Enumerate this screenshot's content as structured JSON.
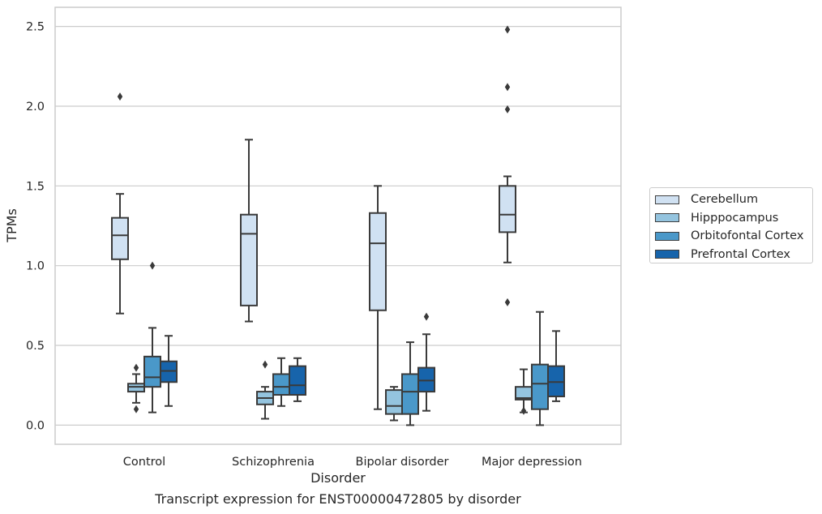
{
  "caption": "Transcript expression for ENST00000472805 by disorder",
  "chart_data": {
    "type": "box",
    "xlabel": "Disorder",
    "ylabel": "TPMs",
    "ylim": [
      -0.12,
      2.62
    ],
    "yticks": [
      0.0,
      0.5,
      1.0,
      1.5,
      2.0,
      2.5
    ],
    "ytick_labels": [
      "0.0",
      "0.5",
      "1.0",
      "1.5",
      "2.0",
      "2.5"
    ],
    "grid": "horizontal",
    "legend_position": "right",
    "categories": [
      "Control",
      "Schizophrenia",
      "Bipolar disorder",
      "Major depression"
    ],
    "series": [
      {
        "name": "Cerebellum",
        "color": "#d0e1f2",
        "boxes": [
          {
            "whisker_low": 0.7,
            "q1": 1.04,
            "median": 1.19,
            "q3": 1.3,
            "whisker_high": 1.45,
            "outliers": [
              2.06
            ]
          },
          {
            "whisker_low": 0.65,
            "q1": 0.75,
            "median": 1.2,
            "q3": 1.32,
            "whisker_high": 1.79,
            "outliers": []
          },
          {
            "whisker_low": 0.1,
            "q1": 0.72,
            "median": 1.14,
            "q3": 1.33,
            "whisker_high": 1.5,
            "outliers": []
          },
          {
            "whisker_low": 1.02,
            "q1": 1.21,
            "median": 1.32,
            "q3": 1.5,
            "whisker_high": 1.56,
            "outliers": [
              0.77,
              1.98,
              2.12,
              2.48
            ]
          }
        ]
      },
      {
        "name": "Hipppocampus",
        "color": "#94c4df",
        "boxes": [
          {
            "whisker_low": 0.14,
            "q1": 0.21,
            "median": 0.24,
            "q3": 0.26,
            "whisker_high": 0.32,
            "outliers": [
              0.1,
              0.36
            ]
          },
          {
            "whisker_low": 0.04,
            "q1": 0.13,
            "median": 0.17,
            "q3": 0.21,
            "whisker_high": 0.24,
            "outliers": [
              0.38
            ]
          },
          {
            "whisker_low": 0.03,
            "q1": 0.07,
            "median": 0.12,
            "q3": 0.22,
            "whisker_high": 0.24,
            "outliers": []
          },
          {
            "whisker_low": 0.08,
            "q1": 0.16,
            "median": 0.17,
            "q3": 0.24,
            "whisker_high": 0.35,
            "outliers": [
              0.09
            ]
          }
        ]
      },
      {
        "name": "Orbitofontal Cortex",
        "color": "#4a98c9",
        "boxes": [
          {
            "whisker_low": 0.08,
            "q1": 0.24,
            "median": 0.3,
            "q3": 0.43,
            "whisker_high": 0.61,
            "outliers": [
              1.0
            ]
          },
          {
            "whisker_low": 0.12,
            "q1": 0.19,
            "median": 0.24,
            "q3": 0.32,
            "whisker_high": 0.42,
            "outliers": []
          },
          {
            "whisker_low": 0.0,
            "q1": 0.07,
            "median": 0.21,
            "q3": 0.32,
            "whisker_high": 0.52,
            "outliers": []
          },
          {
            "whisker_low": 0.0,
            "q1": 0.1,
            "median": 0.26,
            "q3": 0.38,
            "whisker_high": 0.71,
            "outliers": []
          }
        ]
      },
      {
        "name": "Prefrontal Cortex",
        "color": "#1764ab",
        "boxes": [
          {
            "whisker_low": 0.12,
            "q1": 0.27,
            "median": 0.34,
            "q3": 0.4,
            "whisker_high": 0.56,
            "outliers": []
          },
          {
            "whisker_low": 0.15,
            "q1": 0.19,
            "median": 0.25,
            "q3": 0.37,
            "whisker_high": 0.42,
            "outliers": []
          },
          {
            "whisker_low": 0.09,
            "q1": 0.21,
            "median": 0.28,
            "q3": 0.36,
            "whisker_high": 0.57,
            "outliers": [
              0.68
            ]
          },
          {
            "whisker_low": 0.15,
            "q1": 0.18,
            "median": 0.27,
            "q3": 0.37,
            "whisker_high": 0.59,
            "outliers": []
          }
        ]
      }
    ]
  }
}
